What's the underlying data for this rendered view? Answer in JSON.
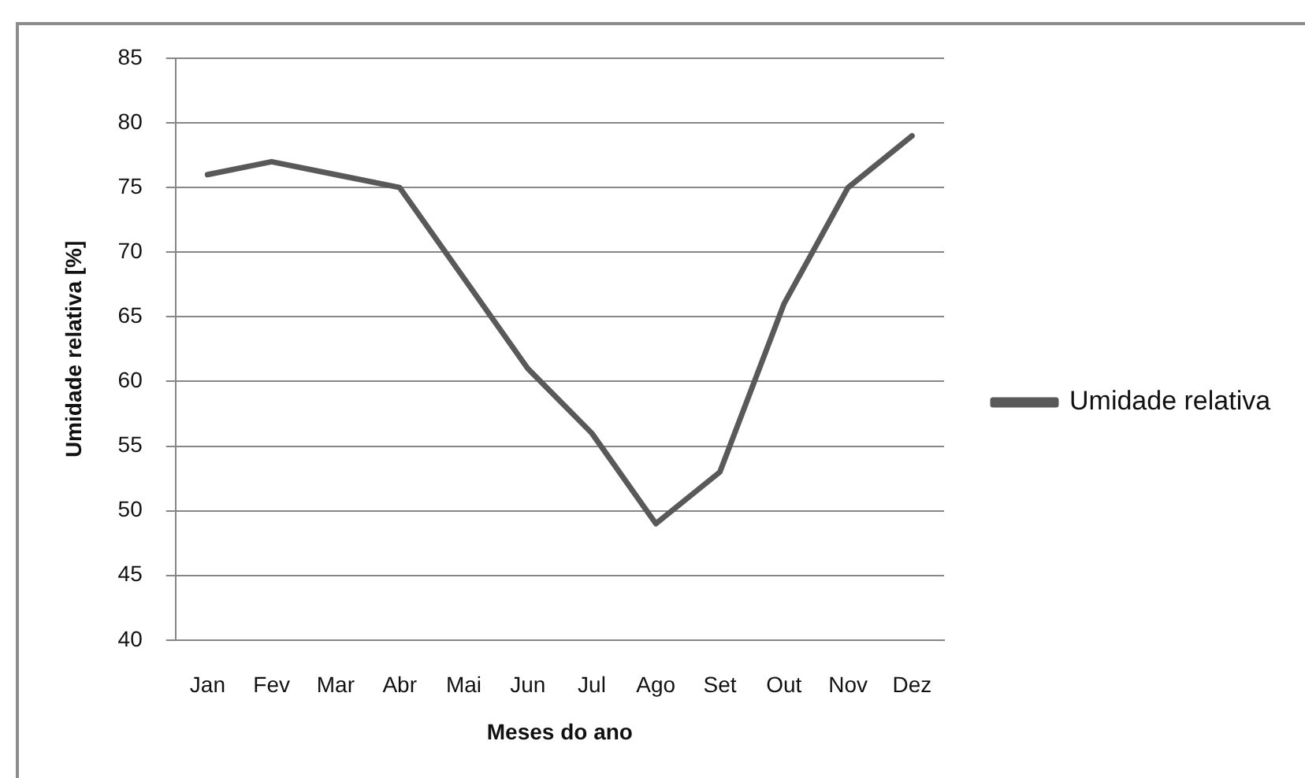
{
  "chart_data": {
    "type": "line",
    "xlabel": "Meses do ano",
    "ylabel": "Umidade relativa [%]",
    "categories": [
      "Jan",
      "Fev",
      "Mar",
      "Abr",
      "Mai",
      "Jun",
      "Jul",
      "Ago",
      "Set",
      "Out",
      "Nov",
      "Dez"
    ],
    "series": [
      {
        "name": "Umidade relativa",
        "color": "#595959",
        "values": [
          76,
          77,
          76,
          75,
          68,
          61,
          56,
          49,
          53,
          66,
          75,
          79
        ]
      }
    ],
    "ylim": [
      40,
      85
    ],
    "yticks": [
      40,
      45,
      50,
      55,
      60,
      65,
      70,
      75,
      80,
      85
    ],
    "grid": "y",
    "legend": "right",
    "line_style": "solid"
  }
}
